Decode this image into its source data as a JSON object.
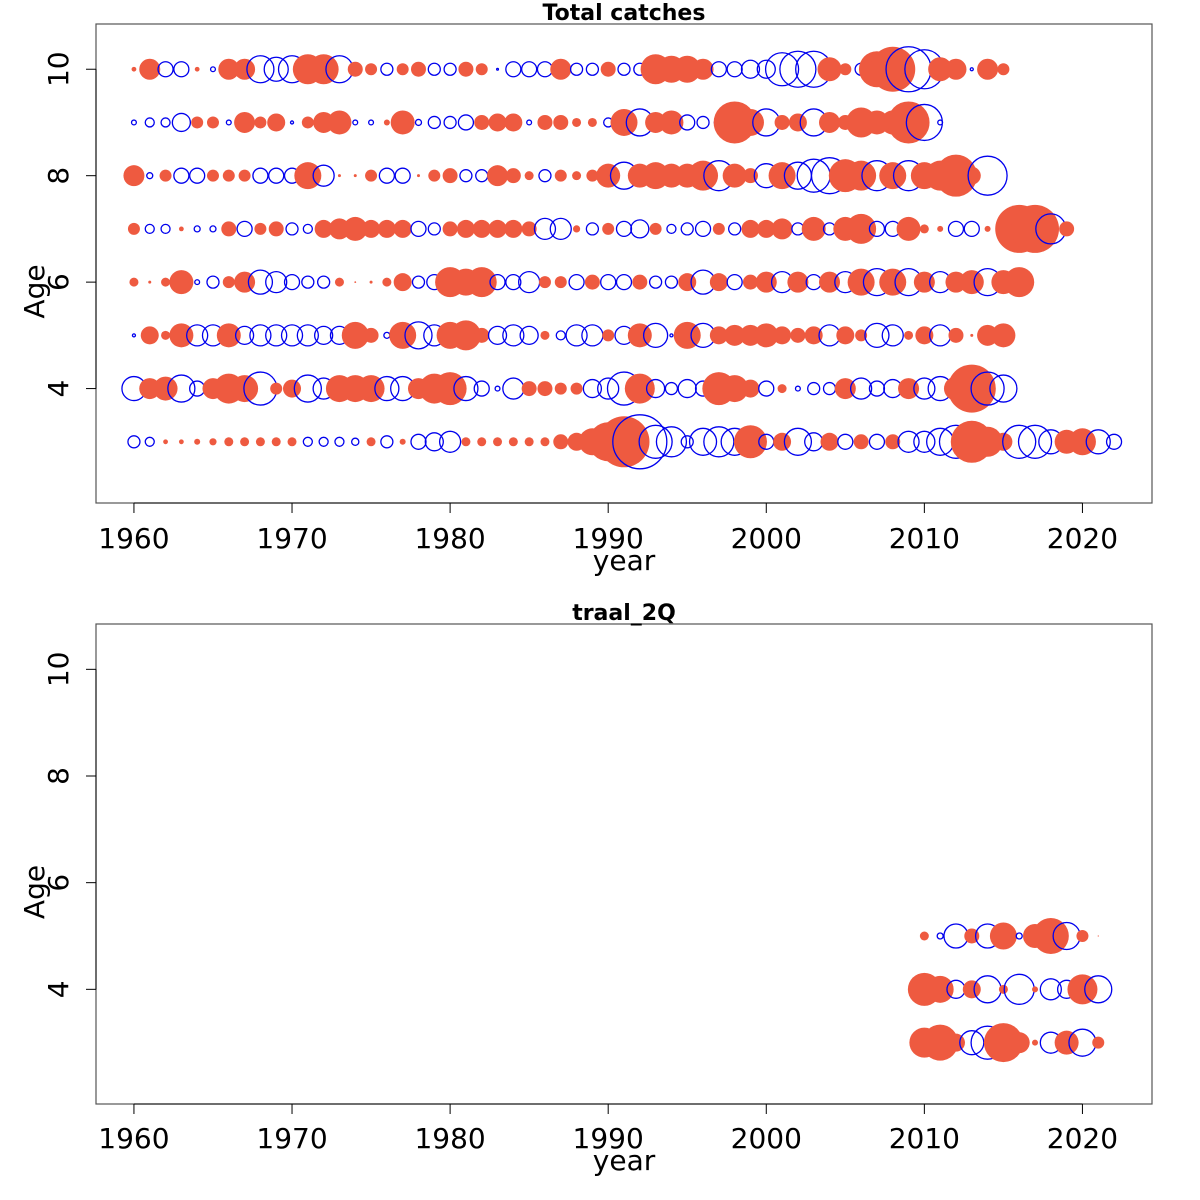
{
  "chart_data": [
    {
      "type": "scatter",
      "subtype": "bubble-residuals",
      "title": "Total catches",
      "xlabel": "year",
      "ylabel": "Age",
      "xlim": [
        1957.6,
        2024.4
      ],
      "ylim": [
        1.85,
        10.85
      ],
      "xticks": [
        1960,
        1970,
        1980,
        1990,
        2000,
        2010,
        2020
      ],
      "yticks": [
        4,
        6,
        8,
        10
      ],
      "years_start": 1960,
      "legend": "none",
      "grid": false,
      "colors": {
        "positive": "#EE5A40",
        "negative": "#0000EE"
      },
      "note": "each row lists signed bubble size per year starting at years_start; positive = filled red, negative = open blue",
      "rows": [
        {
          "age": 10,
          "values": [
            0.08,
            0.35,
            -0.25,
            -0.25,
            0.08,
            -0.08,
            0.35,
            0.35,
            -0.45,
            -0.4,
            -0.45,
            0.5,
            0.5,
            -0.45,
            0.25,
            0.2,
            -0.2,
            0.2,
            0.25,
            -0.2,
            -0.2,
            0.25,
            0.2,
            -0.03,
            -0.25,
            -0.25,
            -0.25,
            0.35,
            -0.2,
            -0.2,
            0.25,
            -0.2,
            -0.2,
            0.5,
            0.45,
            0.45,
            0.35,
            -0.25,
            -0.25,
            -0.3,
            -0.3,
            -0.55,
            -0.6,
            -0.6,
            0.4,
            0.2,
            -0.2,
            0.6,
            0.75,
            -0.75,
            -0.65,
            0.4,
            0.35,
            -0.05,
            0.35,
            0.2
          ]
        },
        {
          "age": 9,
          "values": [
            -0.08,
            -0.15,
            -0.15,
            -0.3,
            0.2,
            0.2,
            -0.08,
            0.35,
            0.2,
            0.3,
            -0.05,
            0.2,
            0.35,
            0.4,
            -0.08,
            -0.08,
            0.1,
            0.4,
            -0.1,
            -0.2,
            -0.2,
            -0.25,
            0.25,
            0.3,
            0.3,
            -0.08,
            0.25,
            0.25,
            0.15,
            0.15,
            -0.15,
            0.45,
            -0.45,
            0.35,
            0.4,
            -0.25,
            -0.2,
            -0.15,
            0.7,
            0.45,
            -0.45,
            0.25,
            0.3,
            -0.45,
            0.35,
            0.25,
            0.5,
            0.4,
            0.4,
            0.7,
            -0.6,
            -0.08
          ]
        },
        {
          "age": 8,
          "values": [
            0.35,
            -0.1,
            0.2,
            -0.25,
            -0.25,
            0.2,
            0.2,
            0.2,
            -0.25,
            -0.25,
            -0.25,
            0.45,
            -0.35,
            0.05,
            0.05,
            0.2,
            -0.25,
            -0.25,
            0.05,
            0.2,
            0.25,
            -0.2,
            -0.2,
            0.35,
            0.25,
            0.15,
            -0.2,
            0.2,
            0.15,
            0.2,
            0.4,
            -0.45,
            0.4,
            0.45,
            0.4,
            0.4,
            0.5,
            -0.5,
            0.4,
            0.25,
            -0.4,
            0.45,
            -0.45,
            -0.55,
            -0.6,
            0.55,
            0.5,
            -0.5,
            0.45,
            -0.5,
            0.45,
            0.5,
            0.7,
            0.3,
            -0.65
          ]
        },
        {
          "age": 7,
          "values": [
            0.2,
            -0.15,
            -0.15,
            0.08,
            -0.1,
            -0.1,
            0.25,
            -0.25,
            0.2,
            0.25,
            -0.2,
            -0.15,
            0.3,
            0.35,
            0.4,
            0.3,
            0.3,
            0.3,
            -0.25,
            -0.2,
            0.25,
            0.3,
            0.3,
            0.3,
            0.3,
            0.25,
            -0.35,
            -0.35,
            0.12,
            -0.2,
            0.2,
            -0.25,
            -0.3,
            0.2,
            -0.15,
            -0.2,
            -0.25,
            0.2,
            -0.2,
            0.3,
            0.3,
            0.35,
            -0.2,
            0.4,
            -0.2,
            0.4,
            0.5,
            -0.25,
            -0.25,
            0.4,
            0.15,
            0.1,
            -0.25,
            -0.25,
            0.1,
            -0.1,
            0.8,
            0.8,
            -0.5,
            0.25
          ]
        },
        {
          "age": 6,
          "values": [
            0.15,
            0.05,
            0.15,
            0.4,
            -0.08,
            -0.2,
            0.2,
            0.35,
            -0.4,
            -0.35,
            -0.25,
            -0.2,
            -0.2,
            0.15,
            0.03,
            0.05,
            0.15,
            0.3,
            -0.2,
            -0.25,
            0.5,
            0.45,
            0.5,
            -0.25,
            -0.25,
            -0.35,
            0.2,
            0.2,
            -0.25,
            0.25,
            -0.25,
            -0.25,
            0.25,
            -0.2,
            -0.2,
            0.3,
            -0.4,
            0.3,
            -0.25,
            0.25,
            0.35,
            -0.35,
            0.35,
            -0.25,
            0.35,
            -0.35,
            0.45,
            -0.45,
            0.45,
            -0.45,
            0.35,
            -0.35,
            0.35,
            0.4,
            -0.45,
            0.4,
            0.5
          ]
        },
        {
          "age": 5,
          "values": [
            -0.05,
            0.3,
            0.15,
            0.4,
            -0.35,
            -0.35,
            0.4,
            -0.3,
            -0.35,
            -0.35,
            -0.35,
            -0.35,
            -0.3,
            -0.3,
            0.45,
            0.25,
            -0.1,
            0.45,
            -0.45,
            -0.35,
            0.45,
            0.5,
            0.25,
            -0.3,
            -0.35,
            -0.3,
            0.15,
            -0.15,
            -0.35,
            -0.35,
            0.2,
            -0.3,
            0.4,
            -0.4,
            -0.05,
            0.45,
            -0.4,
            0.3,
            0.35,
            0.35,
            0.4,
            0.3,
            0.25,
            0.3,
            -0.35,
            0.3,
            0.2,
            -0.4,
            -0.35,
            0.15,
            0.3,
            -0.35,
            0.25,
            0.05,
            0.35,
            0.4
          ]
        },
        {
          "age": 4,
          "values": [
            -0.4,
            0.35,
            0.4,
            -0.45,
            -0.25,
            0.35,
            0.5,
            0.45,
            -0.55,
            0.2,
            0.3,
            -0.45,
            -0.35,
            0.45,
            0.45,
            0.45,
            -0.4,
            -0.4,
            0.35,
            0.5,
            0.55,
            -0.4,
            -0.25,
            -0.08,
            -0.35,
            0.25,
            0.25,
            0.2,
            0.2,
            -0.3,
            -0.35,
            -0.55,
            0.5,
            -0.3,
            -0.2,
            -0.3,
            -0.25,
            0.55,
            0.45,
            0.3,
            -0.25,
            0.15,
            -0.08,
            -0.2,
            -0.2,
            0.35,
            -0.35,
            -0.25,
            -0.3,
            0.35,
            -0.35,
            -0.4,
            0.4,
            0.8,
            -0.55,
            -0.45
          ]
        },
        {
          "age": 3,
          "values": [
            -0.2,
            -0.15,
            0.08,
            0.08,
            0.1,
            0.12,
            0.15,
            0.15,
            0.15,
            0.15,
            0.15,
            -0.15,
            -0.15,
            -0.15,
            -0.12,
            0.15,
            -0.2,
            0.1,
            -0.25,
            -0.3,
            -0.35,
            0.15,
            0.15,
            0.15,
            0.15,
            0.15,
            0.15,
            0.25,
            0.3,
            0.45,
            0.65,
            0.85,
            -0.9,
            -0.55,
            -0.5,
            -0.2,
            -0.45,
            -0.5,
            -0.45,
            0.55,
            -0.25,
            0.3,
            -0.45,
            -0.3,
            0.3,
            -0.25,
            0.25,
            -0.25,
            0.25,
            -0.35,
            -0.35,
            -0.45,
            -0.55,
            0.7,
            0.5,
            0.3,
            -0.55,
            -0.55,
            -0.4,
            0.4,
            0.45,
            -0.4,
            -0.25
          ]
        }
      ]
    },
    {
      "type": "scatter",
      "subtype": "bubble-residuals",
      "title": "traal_2Q",
      "xlabel": "year",
      "ylabel": "Age",
      "xlim": [
        1957.6,
        2024.4
      ],
      "ylim": [
        1.85,
        10.85
      ],
      "xticks": [
        1960,
        1970,
        1980,
        1990,
        2000,
        2010,
        2020
      ],
      "yticks": [
        4,
        6,
        8,
        10
      ],
      "years_start": 2010,
      "legend": "none",
      "grid": false,
      "colors": {
        "positive": "#EE5A40",
        "negative": "#0000EE"
      },
      "rows": [
        {
          "age": 5,
          "values": [
            0.15,
            -0.1,
            -0.4,
            0.25,
            -0.4,
            0.45,
            -0.1,
            0.4,
            0.6,
            -0.45,
            0.2,
            0.02
          ]
        },
        {
          "age": 4,
          "values": [
            0.55,
            0.45,
            -0.3,
            0.3,
            -0.45,
            0.15,
            -0.5,
            0.1,
            -0.35,
            -0.3,
            0.5,
            -0.45
          ]
        },
        {
          "age": 3,
          "values": [
            0.5,
            0.6,
            0.3,
            -0.4,
            -0.55,
            0.65,
            0.35,
            0.1,
            -0.35,
            0.4,
            -0.45,
            0.2
          ]
        }
      ]
    }
  ]
}
